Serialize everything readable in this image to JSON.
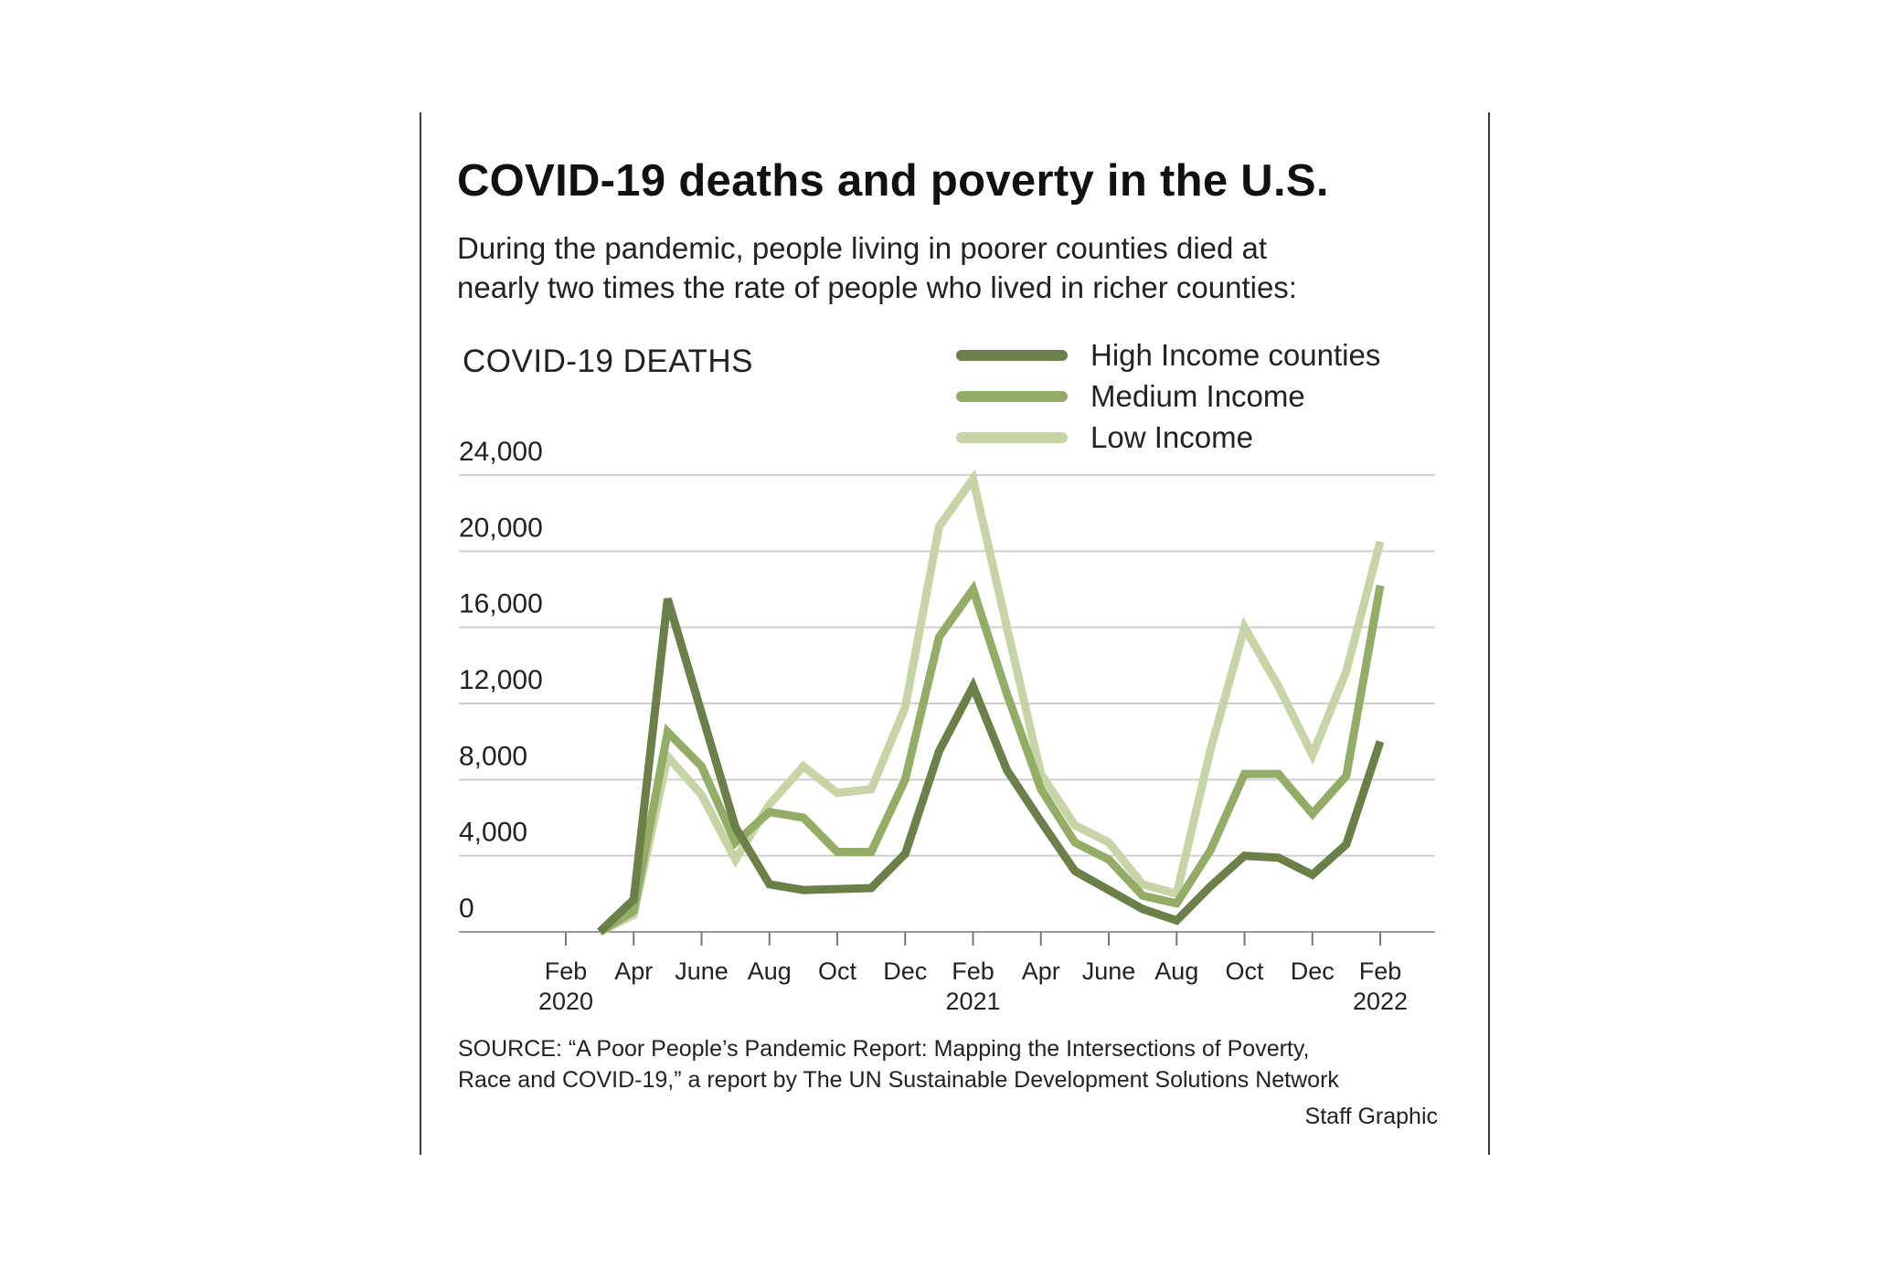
{
  "title": "COVID-19 deaths and poverty in the U.S.",
  "subtitle": [
    "During the pandemic, people living in poorer counties died at",
    "nearly two times the rate of people who lived in richer counties:"
  ],
  "source": [
    "SOURCE: “A Poor People’s Pandemic Report: Mapping the Intersections of Poverty,",
    "Race and COVID-19,” a report by The UN Sustainable Development Solutions Network"
  ],
  "credit": "Staff Graphic",
  "chart_data": {
    "type": "line",
    "title": "COVID-19 deaths and poverty in the U.S.",
    "ylabel": "COVID-19 DEATHS",
    "xlabel": "",
    "ylim": [
      0,
      24000
    ],
    "yticks": [
      0,
      4000,
      8000,
      12000,
      16000,
      20000,
      24000
    ],
    "ytick_labels": [
      "0",
      "4,000",
      "8,000",
      "12,000",
      "16,000",
      "20,000",
      "24,000"
    ],
    "xlim": [
      "2020-02",
      "2022-02"
    ],
    "xticks": [
      {
        "x": "2020-02",
        "line1": "Feb",
        "line2": "2020"
      },
      {
        "x": "2020-04",
        "line1": "Apr",
        "line2": ""
      },
      {
        "x": "2020-06",
        "line1": "June",
        "line2": ""
      },
      {
        "x": "2020-08",
        "line1": "Aug",
        "line2": ""
      },
      {
        "x": "2020-10",
        "line1": "Oct",
        "line2": ""
      },
      {
        "x": "2020-12",
        "line1": "Dec",
        "line2": ""
      },
      {
        "x": "2021-02",
        "line1": "Feb",
        "line2": "2021"
      },
      {
        "x": "2021-04",
        "line1": "Apr",
        "line2": ""
      },
      {
        "x": "2021-06",
        "line1": "June",
        "line2": ""
      },
      {
        "x": "2021-08",
        "line1": "Aug",
        "line2": ""
      },
      {
        "x": "2021-10",
        "line1": "Oct",
        "line2": ""
      },
      {
        "x": "2021-12",
        "line1": "Dec",
        "line2": ""
      },
      {
        "x": "2022-02",
        "line1": "Feb",
        "line2": "2022"
      }
    ],
    "grid": true,
    "legend_position": "top-right",
    "x": [
      "2020-03",
      "2020-04",
      "2020-05",
      "2020-06",
      "2020-07",
      "2020-08",
      "2020-09",
      "2020-10",
      "2020-11",
      "2020-12",
      "2021-01",
      "2021-02",
      "2021-03",
      "2021-04",
      "2021-05",
      "2021-06",
      "2021-07",
      "2021-08",
      "2021-09",
      "2021-10",
      "2021-11",
      "2021-12",
      "2022-01",
      "2022-02"
    ],
    "series": [
      {
        "name": "High Income counties",
        "color": "#6b8048",
        "values": [
          0,
          1700,
          17500,
          11500,
          5500,
          2500,
          2200,
          2250,
          2300,
          4100,
          9500,
          12900,
          8500,
          5800,
          3200,
          2200,
          1200,
          600,
          2400,
          4000,
          3900,
          3000,
          4600,
          10000
        ]
      },
      {
        "name": "Medium Income",
        "color": "#93ad66",
        "values": [
          0,
          1100,
          10500,
          8700,
          4700,
          6300,
          6000,
          4200,
          4200,
          8000,
          15500,
          18000,
          12500,
          7500,
          4700,
          3800,
          1900,
          1500,
          4300,
          8300,
          8300,
          6200,
          8200,
          18200
        ]
      },
      {
        "name": "Low Income",
        "color": "#c6d4a6",
        "values": [
          0,
          900,
          9200,
          7200,
          3800,
          6700,
          8700,
          7300,
          7500,
          11800,
          21300,
          23800,
          16000,
          8300,
          5600,
          4700,
          2500,
          2000,
          9600,
          16000,
          12900,
          9300,
          13700,
          20500
        ]
      }
    ]
  }
}
